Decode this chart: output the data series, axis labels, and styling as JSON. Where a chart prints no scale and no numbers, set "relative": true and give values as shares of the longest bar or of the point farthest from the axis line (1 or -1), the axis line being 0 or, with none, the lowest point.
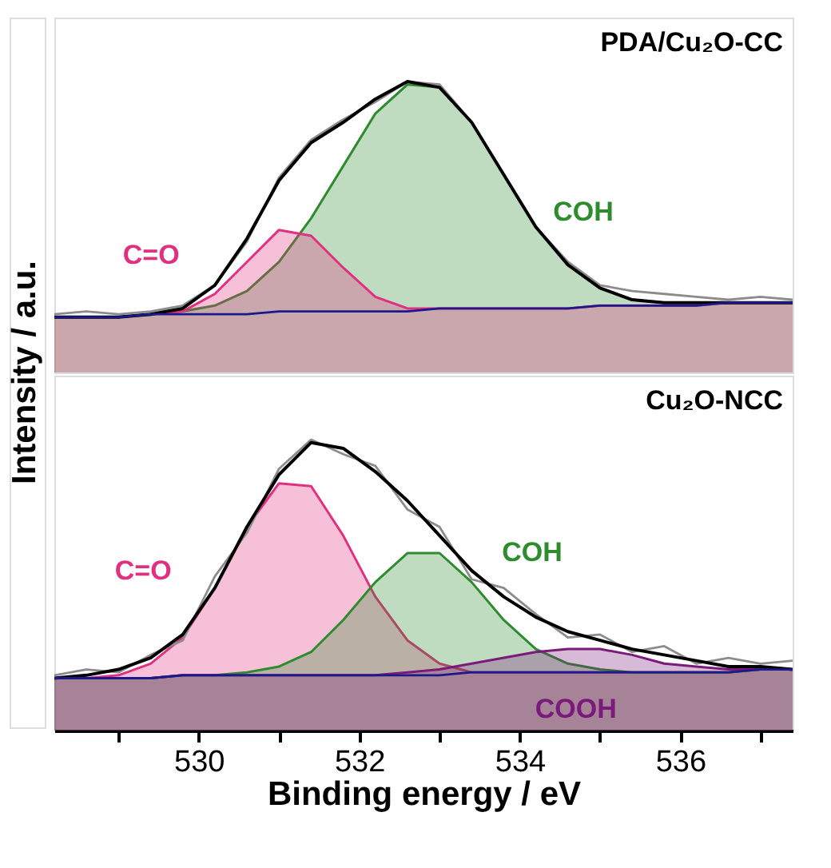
{
  "chart_data": [
    {
      "type": "line",
      "title": "PDA/Cu₂O-CC",
      "ylabel": "Intensity / a.u.",
      "relative": true,
      "tick_labels": false,
      "x": [
        528.2,
        528.6,
        529.0,
        529.4,
        529.8,
        530.2,
        530.6,
        531.0,
        531.4,
        531.8,
        532.2,
        532.6,
        533.0,
        533.4,
        533.8,
        534.2,
        534.6,
        535.0,
        535.4,
        535.8,
        536.2,
        536.6,
        537.0,
        537.4
      ],
      "xlim": [
        528.2,
        537.4
      ],
      "series": [
        {
          "type": "area",
          "name": "COH",
          "color": "#2e8b2e",
          "values": [
            0.19,
            0.19,
            0.19,
            0.2,
            0.21,
            0.23,
            0.28,
            0.38,
            0.53,
            0.71,
            0.89,
            0.99,
            0.98,
            0.86,
            0.68,
            0.5,
            0.37,
            0.29,
            0.25,
            0.24,
            0.24,
            0.24,
            0.24,
            0.24
          ]
        },
        {
          "type": "area",
          "name": "C=O",
          "color": "#e0307f",
          "values": [
            0.19,
            0.19,
            0.19,
            0.2,
            0.21,
            0.27,
            0.38,
            0.49,
            0.47,
            0.36,
            0.26,
            0.22,
            0.22,
            0.22,
            0.22,
            0.22,
            0.22,
            0.23,
            0.23,
            0.23,
            0.23,
            0.24,
            0.24,
            0.24
          ]
        },
        {
          "color": "#8c8c8c",
          "values": [
            0.2,
            0.21,
            0.2,
            0.21,
            0.23,
            0.3,
            0.45,
            0.67,
            0.8,
            0.87,
            0.93,
            1.0,
            0.99,
            0.86,
            0.68,
            0.5,
            0.38,
            0.3,
            0.28,
            0.27,
            0.26,
            0.25,
            0.26,
            0.25
          ]
        },
        {
          "color": "#000000",
          "values": [
            0.19,
            0.19,
            0.19,
            0.2,
            0.22,
            0.3,
            0.46,
            0.66,
            0.79,
            0.86,
            0.94,
            1.0,
            0.98,
            0.86,
            0.68,
            0.5,
            0.37,
            0.29,
            0.25,
            0.24,
            0.24,
            0.24,
            0.24,
            0.24
          ]
        },
        {
          "color": "#1a1a8c",
          "values": [
            0.19,
            0.19,
            0.19,
            0.2,
            0.2,
            0.2,
            0.2,
            0.21,
            0.21,
            0.21,
            0.21,
            0.21,
            0.22,
            0.22,
            0.22,
            0.22,
            0.22,
            0.23,
            0.23,
            0.23,
            0.23,
            0.24,
            0.24,
            0.24
          ]
        }
      ]
    },
    {
      "type": "line",
      "title": "Cu₂O-NCC",
      "xlabel": "Binding energy / eV",
      "relative": true,
      "tick_labels": "x",
      "x": [
        528.2,
        528.6,
        529.0,
        529.4,
        529.8,
        530.2,
        530.6,
        531.0,
        531.4,
        531.8,
        532.2,
        532.6,
        533.0,
        533.4,
        533.8,
        534.2,
        534.6,
        535.0,
        535.4,
        535.8,
        536.2,
        536.6,
        537.0,
        537.4
      ],
      "xlim": [
        528.2,
        537.4
      ],
      "xticks": [
        {
          "value": 529,
          "label": null
        },
        530,
        {
          "value": 531,
          "label": null
        },
        532,
        {
          "value": 533,
          "label": null
        },
        534,
        {
          "value": 535,
          "label": null
        },
        536,
        {
          "value": 537,
          "label": null
        }
      ],
      "series": [
        {
          "type": "area",
          "name": "C=O",
          "color": "#e0307f",
          "values": [
            0.18,
            0.18,
            0.19,
            0.23,
            0.32,
            0.49,
            0.7,
            0.85,
            0.84,
            0.67,
            0.46,
            0.31,
            0.23,
            0.2,
            0.2,
            0.2,
            0.2,
            0.2,
            0.2,
            0.2,
            0.2,
            0.2,
            0.21,
            0.21
          ]
        },
        {
          "type": "area",
          "name": "COH",
          "color": "#2e8b2e",
          "values": [
            0.18,
            0.18,
            0.18,
            0.18,
            0.19,
            0.19,
            0.2,
            0.22,
            0.27,
            0.38,
            0.51,
            0.61,
            0.61,
            0.51,
            0.38,
            0.28,
            0.23,
            0.21,
            0.2,
            0.2,
            0.2,
            0.2,
            0.21,
            0.21
          ]
        },
        {
          "type": "area",
          "name": "COOH",
          "color": "#7a1a7a",
          "values": [
            0.18,
            0.18,
            0.18,
            0.18,
            0.19,
            0.19,
            0.19,
            0.19,
            0.19,
            0.19,
            0.19,
            0.2,
            0.21,
            0.23,
            0.25,
            0.27,
            0.28,
            0.28,
            0.26,
            0.23,
            0.22,
            0.21,
            0.21,
            0.21
          ]
        },
        {
          "color": "#8c8c8c",
          "values": [
            0.19,
            0.21,
            0.2,
            0.26,
            0.31,
            0.53,
            0.68,
            0.9,
            1.0,
            0.95,
            0.91,
            0.76,
            0.7,
            0.52,
            0.49,
            0.4,
            0.32,
            0.33,
            0.27,
            0.29,
            0.23,
            0.25,
            0.23,
            0.24
          ]
        },
        {
          "color": "#000000",
          "values": [
            0.18,
            0.19,
            0.21,
            0.25,
            0.33,
            0.49,
            0.7,
            0.88,
            0.99,
            0.97,
            0.89,
            0.79,
            0.67,
            0.55,
            0.46,
            0.39,
            0.34,
            0.31,
            0.28,
            0.26,
            0.24,
            0.22,
            0.22,
            0.21
          ]
        },
        {
          "color": "#1a1a8c",
          "values": [
            0.18,
            0.18,
            0.18,
            0.18,
            0.19,
            0.19,
            0.19,
            0.19,
            0.19,
            0.19,
            0.19,
            0.19,
            0.19,
            0.2,
            0.2,
            0.2,
            0.2,
            0.2,
            0.2,
            0.2,
            0.2,
            0.2,
            0.21,
            0.21
          ]
        }
      ]
    }
  ]
}
